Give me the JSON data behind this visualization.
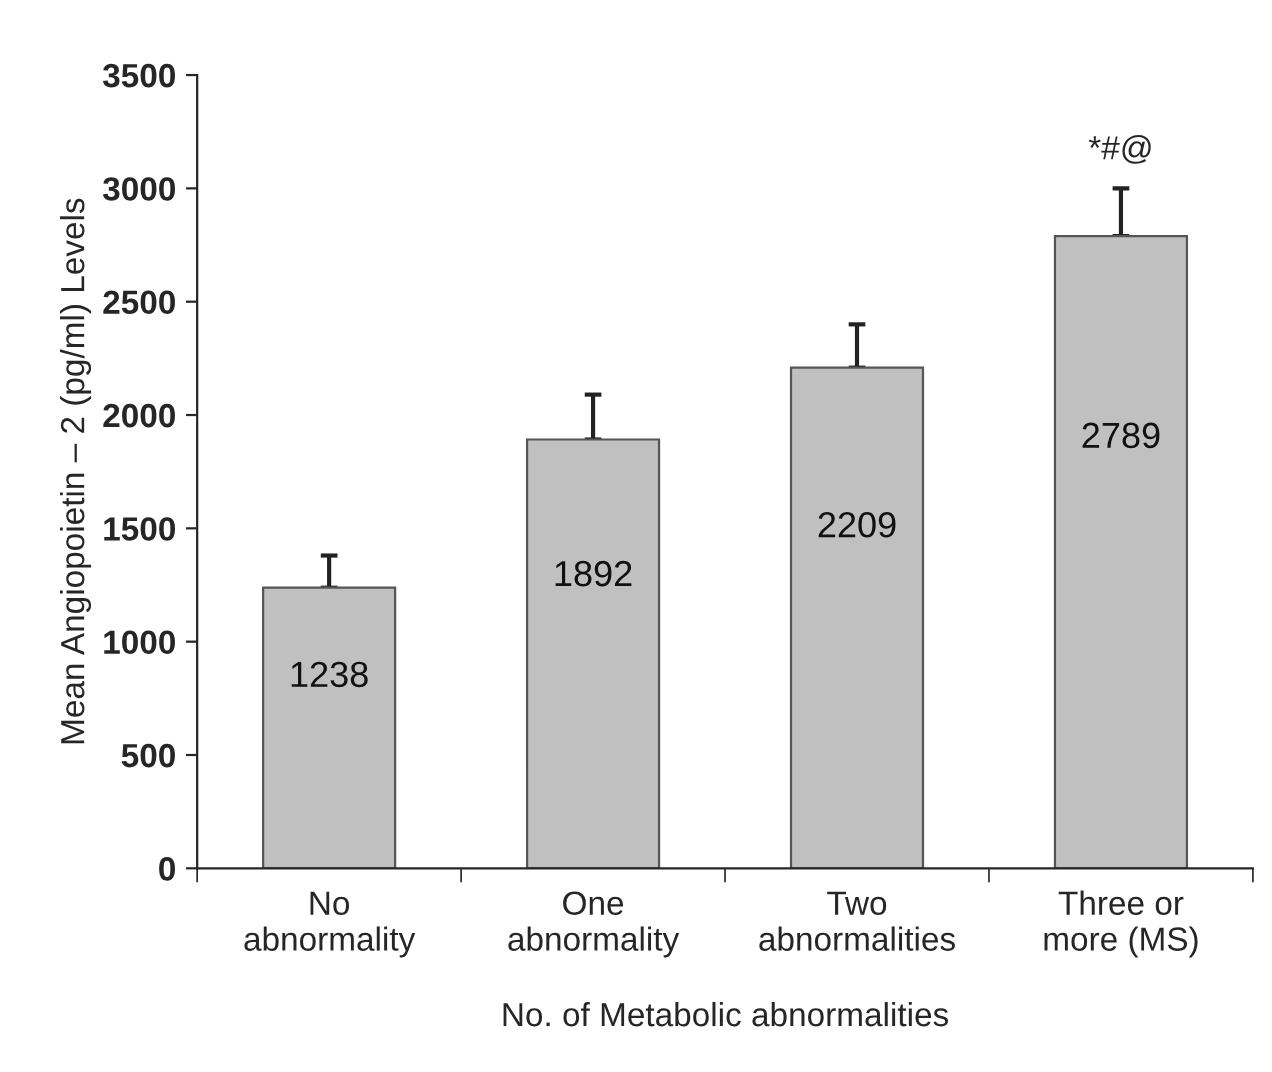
{
  "chart_data": {
    "type": "bar",
    "xlabel": "No. of Metabolic abnormalities",
    "ylabel": "Mean Angiopoietin – 2 (pg/ml) Levels",
    "categories": [
      "No\nabnormality",
      "One\nabnormality",
      "Two\nabnormalities",
      "Three or\nmore (MS)"
    ],
    "values": [
      1238,
      1892,
      2209,
      2789
    ],
    "errors": [
      [
        1238,
        1380
      ],
      [
        1892,
        2090
      ],
      [
        2209,
        2400
      ],
      [
        2789,
        3000
      ]
    ],
    "color": "#c0c0c0",
    "data_labels": true,
    "annotations": [
      {
        "text": "*#@",
        "x": "Three or\nmore (MS)",
        "y": 3000
      }
    ],
    "ylim": [
      0,
      3500
    ],
    "yticks": [
      0,
      500,
      1000,
      1500,
      2000,
      2500,
      3000,
      3500
    ],
    "grid": false,
    "legend": false
  }
}
